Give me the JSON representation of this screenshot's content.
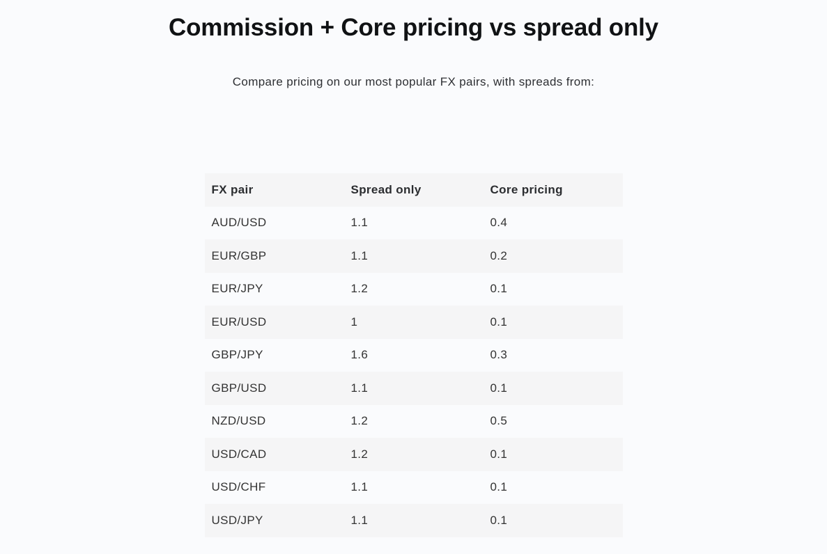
{
  "page": {
    "title": "Commission + Core pricing vs spread only",
    "subtitle": "Compare pricing on our most popular FX pairs, with spreads from:"
  },
  "colors": {
    "page_background": "#fafbfd",
    "row_stripe": "#f5f5f6",
    "title_text": "#101214",
    "body_text": "#333333"
  },
  "table": {
    "headers": {
      "pair": "FX pair",
      "spread": "Spread only",
      "core": "Core pricing"
    },
    "rows": [
      {
        "pair": "AUD/USD",
        "spread": "1.1",
        "core": "0.4"
      },
      {
        "pair": "EUR/GBP",
        "spread": "1.1",
        "core": "0.2"
      },
      {
        "pair": "EUR/JPY",
        "spread": "1.2",
        "core": "0.1"
      },
      {
        "pair": "EUR/USD",
        "spread": "1",
        "core": "0.1"
      },
      {
        "pair": "GBP/JPY",
        "spread": "1.6",
        "core": "0.3"
      },
      {
        "pair": "GBP/USD",
        "spread": "1.1",
        "core": "0.1"
      },
      {
        "pair": "NZD/USD",
        "spread": "1.2",
        "core": "0.5"
      },
      {
        "pair": "USD/CAD",
        "spread": "1.2",
        "core": "0.1"
      },
      {
        "pair": "USD/CHF",
        "spread": "1.1",
        "core": "0.1"
      },
      {
        "pair": "USD/JPY",
        "spread": "1.1",
        "core": "0.1"
      }
    ]
  },
  "chart_data": {
    "type": "table",
    "title": "Commission + Core pricing vs spread only",
    "columns": [
      "FX pair",
      "Spread only",
      "Core pricing"
    ],
    "rows": [
      [
        "AUD/USD",
        1.1,
        0.4
      ],
      [
        "EUR/GBP",
        1.1,
        0.2
      ],
      [
        "EUR/JPY",
        1.2,
        0.1
      ],
      [
        "EUR/USD",
        1,
        0.1
      ],
      [
        "GBP/JPY",
        1.6,
        0.3
      ],
      [
        "GBP/USD",
        1.1,
        0.1
      ],
      [
        "NZD/USD",
        1.2,
        0.5
      ],
      [
        "USD/CAD",
        1.2,
        0.1
      ],
      [
        "USD/CHF",
        1.1,
        0.1
      ],
      [
        "USD/JPY",
        1.1,
        0.1
      ]
    ]
  }
}
